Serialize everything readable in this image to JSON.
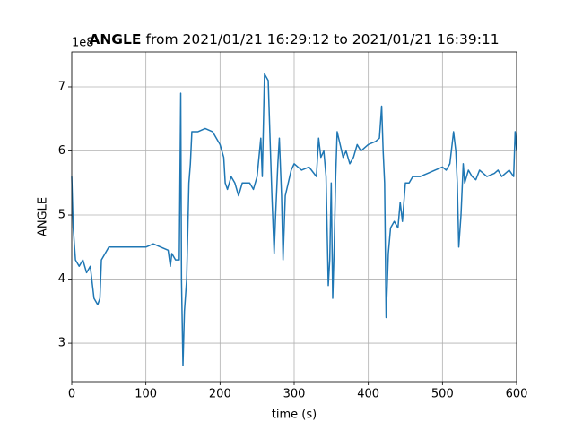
{
  "chart_data": {
    "type": "line",
    "title": {
      "bold": "ANGLE",
      "text": "from 2021/01/21 16:29:12 to 2021/01/21 16:39:11"
    },
    "y_offset_label": "1e8",
    "xlabel": "time (s)",
    "ylabel": "ANGLE",
    "x": [
      0,
      2,
      5,
      10,
      15,
      20,
      25,
      28,
      30,
      35,
      38,
      40,
      45,
      50,
      60,
      70,
      80,
      90,
      100,
      110,
      120,
      130,
      133,
      135,
      140,
      145,
      147,
      148,
      150,
      152,
      155,
      158,
      160,
      162,
      170,
      180,
      190,
      195,
      200,
      205,
      207,
      210,
      215,
      220,
      225,
      230,
      240,
      245,
      250,
      255,
      257,
      260,
      265,
      268,
      270,
      273,
      275,
      278,
      280,
      283,
      285,
      288,
      292,
      296,
      300,
      310,
      320,
      330,
      333,
      336,
      340,
      343,
      346,
      348,
      350,
      352,
      354,
      356,
      358,
      362,
      366,
      370,
      375,
      380,
      385,
      390,
      400,
      410,
      415,
      418,
      420,
      422,
      424,
      427,
      430,
      435,
      440,
      443,
      446,
      450,
      455,
      460,
      470,
      480,
      490,
      500,
      505,
      510,
      515,
      518,
      520,
      522,
      525,
      528,
      530,
      535,
      540,
      545,
      550,
      560,
      570,
      575,
      580,
      590,
      596,
      598,
      600
    ],
    "series": [
      {
        "name": "ANGLE",
        "color": "#1f77b4",
        "values": [
          5.6,
          4.8,
          4.3,
          4.2,
          4.3,
          4.1,
          4.2,
          3.9,
          3.7,
          3.6,
          3.7,
          4.3,
          4.4,
          4.5,
          4.5,
          4.5,
          4.5,
          4.5,
          4.5,
          4.55,
          4.5,
          4.45,
          4.2,
          4.4,
          4.3,
          4.3,
          6.9,
          4.0,
          2.65,
          3.5,
          4.0,
          5.5,
          5.8,
          6.3,
          6.3,
          6.35,
          6.3,
          6.2,
          6.1,
          5.9,
          5.5,
          5.4,
          5.6,
          5.5,
          5.3,
          5.5,
          5.5,
          5.4,
          5.6,
          6.2,
          5.6,
          7.2,
          7.1,
          6.0,
          5.3,
          4.4,
          5.0,
          5.8,
          6.2,
          5.3,
          4.3,
          5.3,
          5.5,
          5.7,
          5.8,
          5.7,
          5.75,
          5.6,
          6.2,
          5.9,
          6.0,
          5.6,
          3.9,
          4.3,
          5.5,
          3.7,
          4.5,
          5.6,
          6.3,
          6.1,
          5.9,
          6.0,
          5.8,
          5.9,
          6.1,
          6.0,
          6.1,
          6.15,
          6.2,
          6.7,
          6.0,
          5.5,
          3.4,
          4.4,
          4.8,
          4.9,
          4.8,
          5.2,
          4.9,
          5.5,
          5.5,
          5.6,
          5.6,
          5.65,
          5.7,
          5.75,
          5.7,
          5.8,
          6.3,
          6.0,
          5.5,
          4.5,
          5.0,
          5.8,
          5.5,
          5.7,
          5.6,
          5.55,
          5.7,
          5.6,
          5.65,
          5.7,
          5.6,
          5.7,
          5.6,
          6.3,
          6.0
        ]
      }
    ],
    "xlim": [
      0,
      600
    ],
    "ylim": [
      2.4,
      7.545
    ],
    "xticks": [
      0,
      100,
      200,
      300,
      400,
      500,
      600
    ],
    "yticks": [
      3,
      4,
      5,
      6,
      7
    ],
    "grid": true
  }
}
